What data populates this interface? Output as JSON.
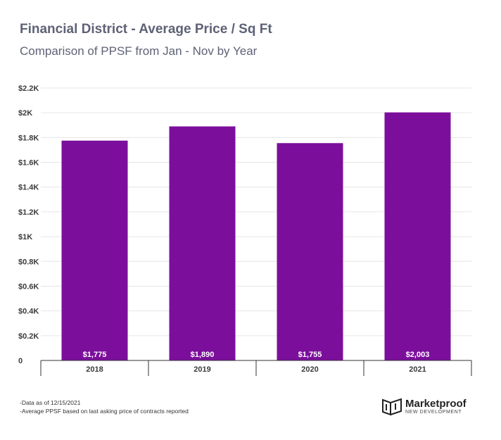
{
  "header": {
    "title": "Financial District - Average Price / Sq Ft",
    "subtitle": "Comparison of PPSF from Jan - Nov by Year"
  },
  "chart_data": {
    "type": "bar",
    "title": "Financial District - Average Price / Sq Ft",
    "subtitle": "Comparison of PPSF from Jan - Nov by Year",
    "categories": [
      "2018",
      "2019",
      "2020",
      "2021"
    ],
    "values": [
      1775,
      1890,
      1755,
      2003
    ],
    "data_labels": [
      "$1,775",
      "$1,890",
      "$1,755",
      "$2,003"
    ],
    "yticks": [
      0,
      200,
      400,
      600,
      800,
      1000,
      1200,
      1400,
      1600,
      1800,
      2000,
      2200
    ],
    "ytick_labels": [
      "0",
      "$0.2K",
      "$0.4K",
      "$0.6K",
      "$0.8K",
      "$1K",
      "$1.2K",
      "$1.4K",
      "$1.6K",
      "$1.8K",
      "$2K",
      "$2.2K"
    ],
    "ylim": [
      0,
      2200
    ],
    "xlabel": "",
    "ylabel": "",
    "grid": true,
    "legend": "none",
    "bar_color": "#7b0f9c"
  },
  "footer": {
    "notes": [
      "-Data as of 12/15/2021",
      "-Average PPSF based on last asking price of contracts reported"
    ],
    "logo_name": "Marketproof",
    "logo_sub": "NEW DEVELOPMENT"
  }
}
